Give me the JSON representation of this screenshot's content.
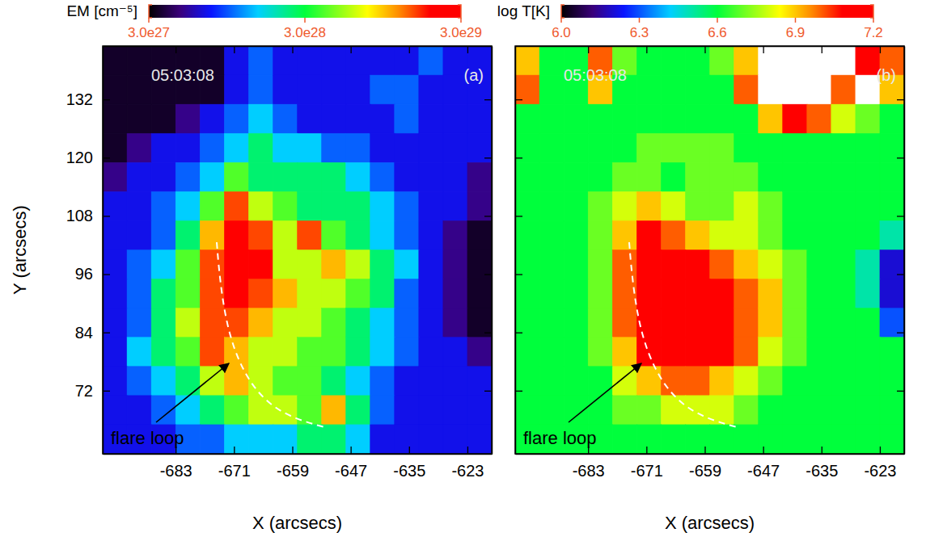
{
  "chart_data": [
    {
      "type": "heatmap",
      "title": "05:03:08",
      "label": "(a)",
      "annotation": "flare loop",
      "xlabel": "X (arcsecs)",
      "ylabel": "Y (arcsecs)",
      "xlim": [
        -698,
        -618
      ],
      "ylim": [
        59,
        143
      ],
      "xticks": [
        -683,
        -671,
        -659,
        -647,
        -635,
        -623
      ],
      "yticks": [
        72,
        84,
        96,
        108,
        120,
        132
      ],
      "x": [
        -695.5,
        -690.5,
        -685.5,
        -680.5,
        -675.5,
        -670.5,
        -665.5,
        -660.5,
        -655.5,
        -650.5,
        -645.5,
        -640.5,
        -635.5,
        -630.5,
        -625.5,
        -620.5
      ],
      "y": [
        140,
        134,
        128,
        122,
        116,
        110,
        104,
        98,
        92,
        86,
        80,
        74,
        68,
        62
      ],
      "cells": [
        [
          3.5e+27,
          3.5e+27,
          3.5e+27,
          3.5e+27,
          3.5e+27,
          7e+27,
          1e+28,
          7e+27,
          7e+27,
          7e+27,
          7e+27,
          7e+27,
          7e+27,
          1e+28,
          7e+27,
          7e+27
        ],
        [
          3.5e+27,
          3.5e+27,
          3.5e+27,
          3.5e+27,
          3.5e+27,
          7e+27,
          1e+28,
          7e+27,
          7e+27,
          7e+27,
          7e+27,
          1e+28,
          1e+28,
          7e+27,
          7e+27,
          7e+27
        ],
        [
          3.5e+27,
          3.5e+27,
          3.5e+27,
          5e+27,
          7e+27,
          1e+28,
          1.5e+28,
          1e+28,
          7e+27,
          7e+27,
          7e+27,
          7e+27,
          1e+28,
          7e+27,
          7e+27,
          7e+27
        ],
        [
          3.5e+27,
          5e+27,
          7e+27,
          7e+27,
          1e+28,
          1.5e+28,
          2.5e+28,
          1.5e+28,
          1.5e+28,
          1e+28,
          1e+28,
          7e+27,
          7e+27,
          7e+27,
          7e+27,
          7e+27
        ],
        [
          5e+27,
          7e+27,
          7e+27,
          1e+28,
          1.5e+28,
          4e+28,
          2.5e+28,
          2.5e+28,
          2.5e+28,
          2.5e+28,
          1.5e+28,
          1e+28,
          7e+27,
          7e+27,
          7e+27,
          5e+27
        ],
        [
          7e+27,
          7e+27,
          1e+28,
          1.5e+28,
          4e+28,
          1.5e+29,
          6e+28,
          4e+28,
          2.5e+28,
          2.5e+28,
          2.5e+28,
          1.5e+28,
          1e+28,
          7e+27,
          7e+27,
          5e+27
        ],
        [
          7e+27,
          7e+27,
          1e+28,
          2.5e+28,
          1e+29,
          2.5e+29,
          1.5e+29,
          6e+28,
          1.5e+29,
          4e+28,
          2.5e+28,
          1.5e+28,
          1e+28,
          7e+27,
          5e+27,
          3.5e+27
        ],
        [
          7e+27,
          1e+28,
          1.5e+28,
          4e+28,
          1.5e+29,
          2.5e+29,
          2.5e+29,
          6e+28,
          6e+28,
          1e+29,
          6e+28,
          2.5e+28,
          1.5e+28,
          7e+27,
          5e+27,
          3.5e+27
        ],
        [
          7e+27,
          1e+28,
          2.5e+28,
          4e+28,
          1.5e+29,
          2.5e+29,
          1.5e+29,
          1e+29,
          6e+28,
          6e+28,
          4e+28,
          2.5e+28,
          1e+28,
          7e+27,
          5e+27,
          3.5e+27
        ],
        [
          7e+27,
          1e+28,
          2.5e+28,
          6e+28,
          1.5e+29,
          1.5e+29,
          1e+29,
          6e+28,
          6e+28,
          4e+28,
          2.5e+28,
          1.5e+28,
          1e+28,
          7e+27,
          5e+27,
          3.5e+27
        ],
        [
          7e+27,
          1.5e+28,
          2.5e+28,
          4e+28,
          1.5e+29,
          1e+29,
          6e+28,
          6e+28,
          4e+28,
          4e+28,
          2.5e+28,
          1.5e+28,
          1e+28,
          7e+27,
          7e+27,
          5e+27
        ],
        [
          7e+27,
          1e+28,
          1.5e+28,
          2.5e+28,
          6e+28,
          1e+29,
          6e+28,
          4e+28,
          4e+28,
          2.5e+28,
          1.5e+28,
          1e+28,
          7e+27,
          7e+27,
          7e+27,
          7e+27
        ],
        [
          7e+27,
          7e+27,
          1e+28,
          1.5e+28,
          2.5e+28,
          4e+28,
          6e+28,
          6e+28,
          4e+28,
          1e+29,
          2.5e+28,
          1e+28,
          7e+27,
          7e+27,
          7e+27,
          7e+27
        ],
        [
          7e+27,
          7e+27,
          7e+27,
          1e+28,
          1e+28,
          1.5e+28,
          1.5e+28,
          1.5e+28,
          2.5e+28,
          2.5e+28,
          1.5e+28,
          7e+27,
          7e+27,
          7e+27,
          7e+27,
          7e+27
        ]
      ],
      "colorbar": {
        "label": "EM [cm⁻⁵]",
        "range": [
          3e+27,
          3e+29
        ],
        "log": true,
        "ticks": [
          {
            "value": 3e+27,
            "label": "3.0e27"
          },
          {
            "value": 3e+28,
            "label": "3.0e28"
          },
          {
            "value": 3e+29,
            "label": "3.0e29"
          }
        ]
      }
    },
    {
      "type": "heatmap",
      "title": "05:03:08",
      "label": "(b)",
      "annotation": "flare loop",
      "xlabel": "X (arcsecs)",
      "tick_labels": "x",
      "xlim": [
        -698,
        -618
      ],
      "ylim": [
        59,
        143
      ],
      "xticks": [
        -683,
        -671,
        -659,
        -647,
        -635,
        -623
      ],
      "yticks": [
        72,
        84,
        96,
        108,
        120,
        132
      ],
      "x": [
        -695.5,
        -690.5,
        -685.5,
        -680.5,
        -675.5,
        -670.5,
        -665.5,
        -660.5,
        -655.5,
        -650.5,
        -645.5,
        -640.5,
        -635.5,
        -630.5,
        -625.5,
        -620.5
      ],
      "y": [
        140,
        134,
        128,
        122,
        116,
        110,
        104,
        98,
        92,
        86,
        80,
        74,
        68,
        62
      ],
      "cells": [
        [
          6.9,
          6.6,
          6.6,
          7.0,
          6.7,
          6.6,
          6.6,
          6.6,
          6.7,
          6.9,
          7.3,
          7.4,
          7.3,
          7.4,
          7.1,
          7.0
        ],
        [
          7.0,
          6.6,
          6.6,
          6.9,
          6.6,
          6.6,
          6.6,
          6.6,
          6.6,
          7.0,
          7.4,
          7.3,
          7.4,
          7.0,
          7.3,
          6.9
        ],
        [
          6.6,
          6.6,
          6.6,
          6.6,
          6.6,
          6.6,
          6.6,
          6.6,
          6.6,
          6.6,
          6.9,
          7.1,
          7.0,
          6.8,
          6.7,
          6.6
        ],
        [
          6.6,
          6.6,
          6.6,
          6.6,
          6.6,
          6.7,
          6.7,
          6.7,
          6.7,
          6.6,
          6.6,
          6.6,
          6.6,
          6.6,
          6.6,
          6.6
        ],
        [
          6.6,
          6.6,
          6.6,
          6.6,
          6.7,
          6.7,
          6.6,
          6.7,
          6.7,
          6.7,
          6.6,
          6.6,
          6.6,
          6.6,
          6.6,
          6.6
        ],
        [
          6.6,
          6.6,
          6.6,
          6.7,
          6.8,
          6.9,
          6.8,
          6.7,
          6.7,
          6.8,
          6.7,
          6.6,
          6.6,
          6.6,
          6.6,
          6.6
        ],
        [
          6.6,
          6.6,
          6.6,
          6.7,
          6.9,
          7.1,
          7.0,
          6.9,
          6.8,
          6.8,
          6.7,
          6.6,
          6.6,
          6.6,
          6.6,
          6.5
        ],
        [
          6.6,
          6.6,
          6.6,
          6.7,
          7.0,
          7.1,
          7.1,
          7.1,
          7.0,
          6.9,
          6.8,
          6.7,
          6.6,
          6.6,
          6.5,
          6.2
        ],
        [
          6.6,
          6.6,
          6.6,
          6.7,
          7.0,
          7.1,
          7.1,
          7.1,
          7.1,
          7.0,
          6.9,
          6.7,
          6.6,
          6.6,
          6.5,
          6.2
        ],
        [
          6.6,
          6.6,
          6.6,
          6.7,
          7.0,
          7.1,
          7.1,
          7.1,
          7.1,
          7.0,
          6.9,
          6.7,
          6.6,
          6.6,
          6.6,
          6.3
        ],
        [
          6.6,
          6.6,
          6.6,
          6.7,
          6.9,
          7.2,
          7.1,
          7.1,
          7.1,
          7.0,
          6.8,
          6.7,
          6.6,
          6.6,
          6.6,
          6.6
        ],
        [
          6.6,
          6.6,
          6.6,
          6.6,
          6.8,
          6.9,
          7.0,
          7.0,
          6.9,
          6.8,
          6.7,
          6.6,
          6.6,
          6.6,
          6.6,
          6.6
        ],
        [
          6.6,
          6.6,
          6.6,
          6.6,
          6.7,
          6.7,
          6.8,
          6.8,
          6.8,
          6.7,
          6.6,
          6.6,
          6.6,
          6.6,
          6.6,
          6.6
        ],
        [
          6.6,
          6.6,
          6.6,
          6.6,
          6.6,
          6.6,
          6.6,
          6.6,
          6.6,
          6.6,
          6.6,
          6.6,
          6.6,
          6.6,
          6.6,
          6.6
        ]
      ],
      "colorbar": {
        "label": "log T[K]",
        "range": [
          6.0,
          7.2
        ],
        "ticks": [
          {
            "value": 6.0,
            "label": "6.0"
          },
          6.3,
          6.6,
          6.9,
          7.2
        ]
      }
    }
  ]
}
